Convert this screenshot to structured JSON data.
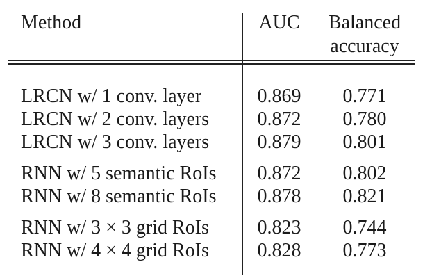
{
  "header": {
    "method": "Method",
    "auc": "AUC",
    "balanced_line1": "Balanced",
    "balanced_line2": "accuracy"
  },
  "groups": [
    {
      "rows": [
        {
          "method": "LRCN w/ 1 conv. layer",
          "auc": "0.869",
          "balanced": "0.771"
        },
        {
          "method": "LRCN w/ 2 conv. layers",
          "auc": "0.872",
          "balanced": "0.780"
        },
        {
          "method": "LRCN w/ 3 conv. layers",
          "auc": "0.879",
          "balanced": "0.801"
        }
      ]
    },
    {
      "rows": [
        {
          "method": "RNN w/ 5 semantic RoIs",
          "auc": "0.872",
          "balanced": "0.802"
        },
        {
          "method": "RNN w/ 8 semantic RoIs",
          "auc": "0.878",
          "balanced": "0.821"
        }
      ]
    },
    {
      "rows": [
        {
          "method": "RNN w/ 3 × 3 grid RoIs",
          "auc": "0.823",
          "balanced": "0.744"
        },
        {
          "method": "RNN w/ 4 × 4 grid RoIs",
          "auc": "0.828",
          "balanced": "0.773"
        }
      ]
    }
  ]
}
